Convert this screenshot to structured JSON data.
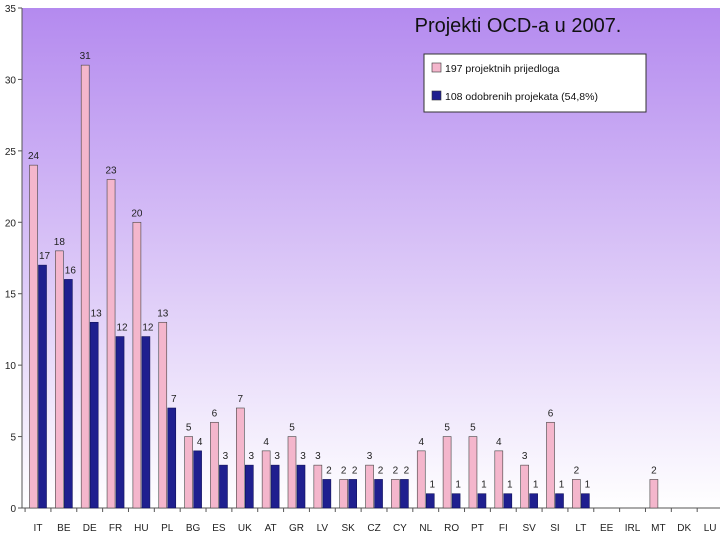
{
  "chart_data": {
    "type": "bar",
    "title": "Projekti OCD-a u 2007.",
    "categories": [
      "IT",
      "BE",
      "DE",
      "FR",
      "HU",
      "PL",
      "BG",
      "ES",
      "UK",
      "AT",
      "GR",
      "LV",
      "SK",
      "CZ",
      "CY",
      "NL",
      "RO",
      "PT",
      "FI",
      "SV",
      "SI",
      "LT",
      "EE",
      "IRL",
      "MT",
      "DK",
      "LU"
    ],
    "series": [
      {
        "name": "197 projektnih prijedloga",
        "color": "#f4b6cc",
        "values": [
          24,
          18,
          31,
          23,
          20,
          13,
          5,
          6,
          7,
          4,
          5,
          3,
          2,
          3,
          2,
          4,
          5,
          5,
          4,
          3,
          6,
          2,
          0,
          0,
          2,
          0,
          0
        ],
        "labels": [
          "24",
          "18",
          "31",
          "23",
          "20",
          "13",
          "5",
          "6",
          "7",
          "4",
          "5",
          "3",
          "2",
          "3",
          "2",
          "4",
          "5",
          "5",
          "4",
          "3",
          "6",
          "2",
          "",
          "",
          "2",
          "",
          ""
        ]
      },
      {
        "name": "108 odobrenih projekata (54,8%)",
        "color": "#1f1f8f",
        "values": [
          17,
          16,
          13,
          12,
          12,
          7,
          4,
          3,
          3,
          3,
          3,
          2,
          2,
          2,
          2,
          1,
          1,
          1,
          1,
          1,
          1,
          1,
          0,
          0,
          0,
          0,
          0
        ],
        "labels": [
          "17",
          "16",
          "13",
          "12",
          "12",
          "7",
          "4",
          "3",
          "3",
          "3",
          "3",
          "2",
          "2",
          "2",
          "2",
          "1",
          "1",
          "1",
          "1",
          "1",
          "1",
          "1",
          "",
          "",
          "",
          "",
          ""
        ]
      }
    ],
    "ylim": [
      0,
      35
    ],
    "yticks": [
      0,
      5,
      10,
      15,
      20,
      25,
      30,
      35
    ],
    "legend": "top-right",
    "grid": false,
    "background_top": "#b48aef",
    "background_bottom": "#ffffff"
  }
}
